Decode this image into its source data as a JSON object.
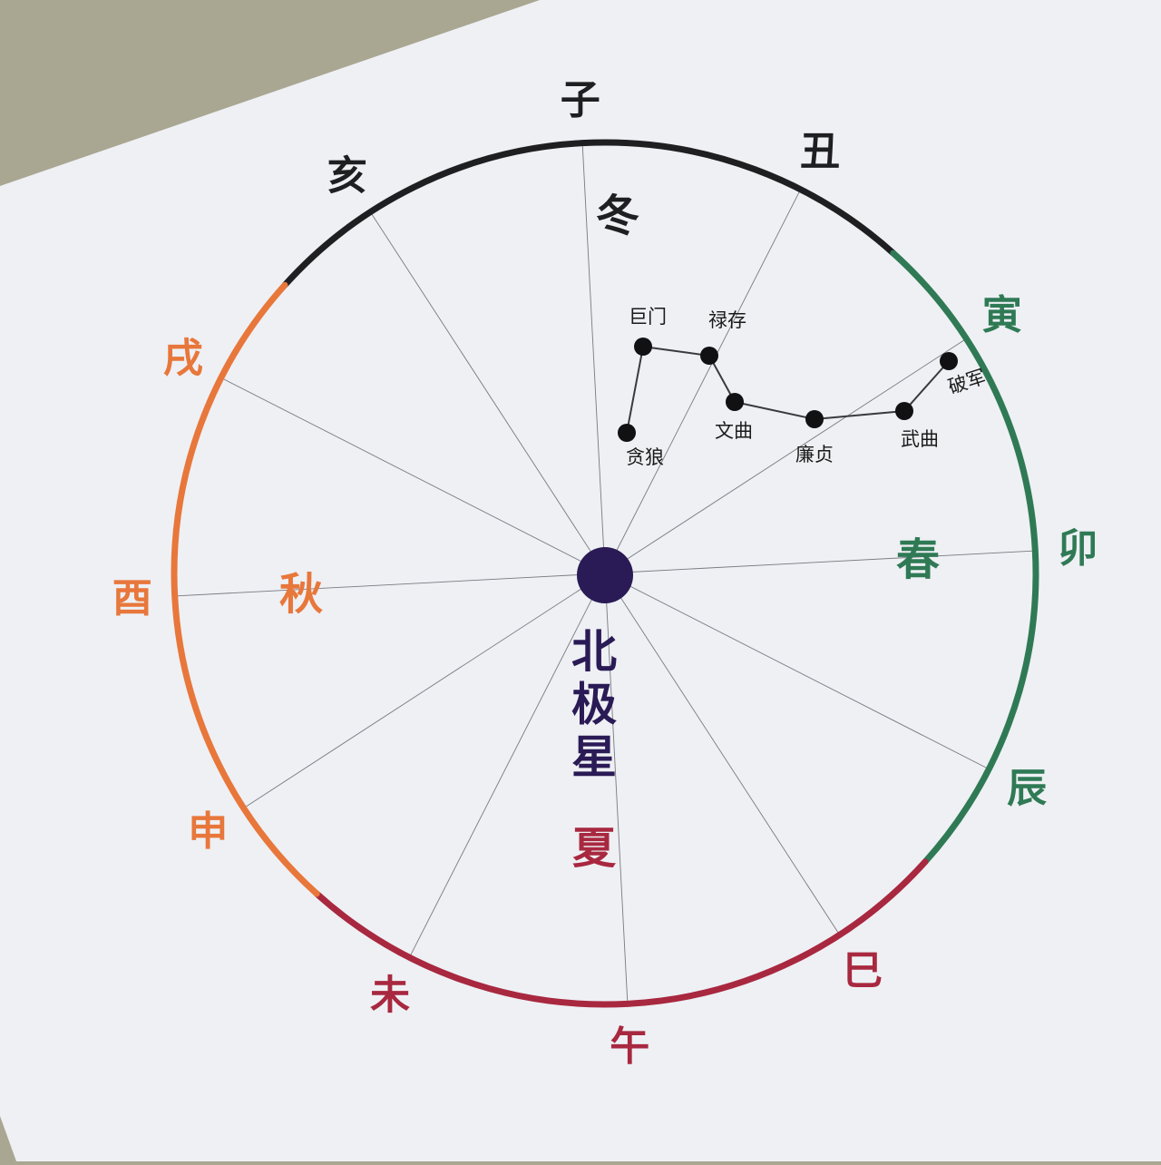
{
  "colors": {
    "winter": "#1f1f22",
    "spring": "#2f7a55",
    "summer": "#a8283f",
    "autumn": "#e8773b",
    "polaris": "#2a1a55",
    "paper": "#eef0f4",
    "table": "#a9a692"
  },
  "zodiac": [
    {
      "name": "子",
      "season": "winter"
    },
    {
      "name": "丑",
      "season": "winter"
    },
    {
      "name": "寅",
      "season": "spring"
    },
    {
      "name": "卯",
      "season": "spring"
    },
    {
      "name": "辰",
      "season": "spring"
    },
    {
      "name": "巳",
      "season": "summer"
    },
    {
      "name": "午",
      "season": "summer"
    },
    {
      "name": "未",
      "season": "summer"
    },
    {
      "name": "申",
      "season": "autumn"
    },
    {
      "name": "酉",
      "season": "autumn"
    },
    {
      "name": "戌",
      "season": "autumn"
    },
    {
      "name": "亥",
      "season": "winter"
    }
  ],
  "seasons": {
    "winter": "冬",
    "spring": "春",
    "summer": "夏",
    "autumn": "秋"
  },
  "polaris": {
    "label": "北极星"
  },
  "big_dipper": {
    "stars": [
      "贪狼",
      "巨门",
      "禄存",
      "文曲",
      "廉贞",
      "武曲",
      "破军"
    ]
  }
}
